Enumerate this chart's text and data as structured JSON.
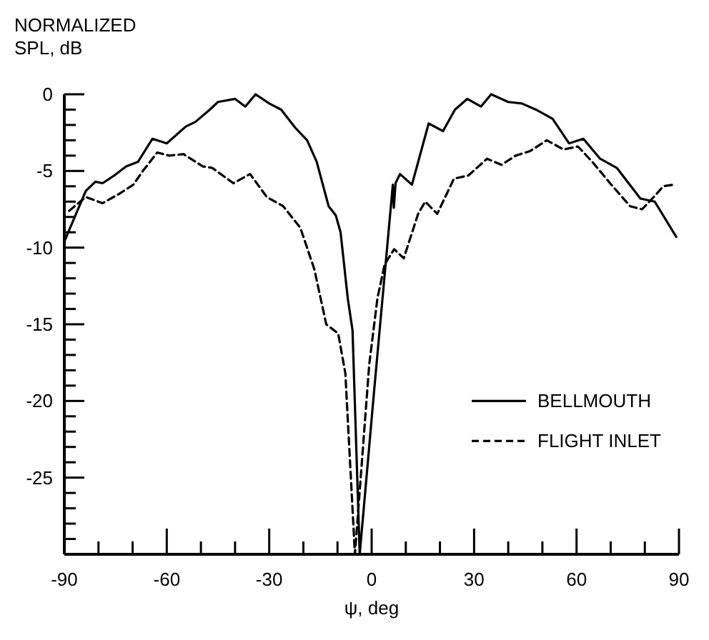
{
  "chart_data": {
    "type": "line",
    "ylabel": "NORMALIZED SPL, dB",
    "xlabel": "ψ, deg",
    "xlim": [
      -90,
      90
    ],
    "ylim": [
      -30,
      0
    ],
    "xticks": [
      -90,
      {
        "value": -80,
        "label": null
      },
      {
        "value": -70,
        "label": null
      },
      -60,
      {
        "value": -50,
        "label": null
      },
      {
        "value": -40,
        "label": null
      },
      -30,
      {
        "value": -20,
        "label": null
      },
      {
        "value": -10,
        "label": null
      },
      0,
      {
        "value": 10,
        "label": null
      },
      {
        "value": 20,
        "label": null
      },
      30,
      {
        "value": 40,
        "label": null
      },
      {
        "value": 50,
        "label": null
      },
      60,
      {
        "value": 70,
        "label": null
      },
      {
        "value": 80,
        "label": null
      },
      90
    ],
    "yticks": [
      {
        "value": -30,
        "label": null
      },
      {
        "value": -29,
        "label": null
      },
      {
        "value": -28,
        "label": null
      },
      {
        "value": -27,
        "label": null
      },
      {
        "value": -26,
        "label": null
      },
      -25,
      {
        "value": -24,
        "label": null
      },
      {
        "value": -23,
        "label": null
      },
      {
        "value": -22,
        "label": null
      },
      {
        "value": -21,
        "label": null
      },
      -20,
      {
        "value": -19,
        "label": null
      },
      {
        "value": -18,
        "label": null
      },
      {
        "value": -17,
        "label": null
      },
      {
        "value": -16,
        "label": null
      },
      -15,
      {
        "value": -14,
        "label": null
      },
      {
        "value": -13,
        "label": null
      },
      {
        "value": -12,
        "label": null
      },
      {
        "value": -11,
        "label": null
      },
      -10,
      {
        "value": -9,
        "label": null
      },
      {
        "value": -8,
        "label": null
      },
      {
        "value": -7,
        "label": null
      },
      {
        "value": -6,
        "label": null
      },
      -5,
      {
        "value": -4,
        "label": null
      },
      {
        "value": -3,
        "label": null
      },
      {
        "value": -2,
        "label": null
      },
      {
        "value": -1,
        "label": null
      },
      0
    ],
    "grid": false,
    "legend": "right",
    "marker": "none",
    "series": [
      {
        "name": "BELLMOUTH",
        "color": "#000000",
        "line_style": "solid",
        "x": [
          -90,
          -83.7,
          -80.9,
          -78.8,
          -75.4,
          -71.9,
          -68.4,
          -64.2,
          -60,
          -54.4,
          -51.6,
          -47.4,
          -45,
          -40,
          -37,
          -34,
          -30,
          -26.5,
          -22.3,
          -18.9,
          -16.1,
          -12.6,
          -10.5,
          -9.1,
          -7,
          -5.6,
          -3.5,
          0.7,
          6.2,
          6.5,
          7,
          8.3,
          11.8,
          16.7,
          20.9,
          24.4,
          28,
          32,
          35,
          40,
          44,
          48.1,
          53,
          57.8,
          62,
          66.9,
          71.8,
          78.7,
          82.9,
          89.2
        ],
        "values": [
          -9.6,
          -6.3,
          -5.7,
          -5.8,
          -5.3,
          -4.7,
          -4.4,
          -2.9,
          -3.2,
          -2.1,
          -1.8,
          -1.0,
          -0.5,
          -0.3,
          -0.8,
          0,
          -0.6,
          -1.0,
          -2.2,
          -3.0,
          -4.4,
          -7.3,
          -7.9,
          -9.0,
          -13.3,
          -15.4,
          -30,
          -19.4,
          -5.9,
          -7.4,
          -5.8,
          -5.2,
          -5.9,
          -1.9,
          -2.4,
          -1.0,
          -0.3,
          -0.8,
          0,
          -0.5,
          -0.6,
          -1.0,
          -1.6,
          -3.2,
          -2.9,
          -4.2,
          -4.8,
          -6.8,
          -7.0,
          -9.3
        ]
      },
      {
        "name": "FLIGHT INLET",
        "color": "#000000",
        "line_style": "dashed",
        "x": [
          -88.6,
          -83.7,
          -78.8,
          -74,
          -69.8,
          -67,
          -62.8,
          -59.3,
          -55.1,
          -49.5,
          -46.7,
          -40.5,
          -35.6,
          -30.7,
          -25.9,
          -20.9,
          -16.8,
          -13.3,
          -9.8,
          -7.7,
          -4.9,
          -0.7,
          1.7,
          3.8,
          6.6,
          9.4,
          13.6,
          15.7,
          19.2,
          24.1,
          28.3,
          33.8,
          38,
          42.2,
          46.4,
          51.3,
          56.2,
          60.4,
          64.6,
          70.2,
          75.7,
          79.2,
          82.6,
          85.4,
          88.2
        ],
        "values": [
          -7.6,
          -6.7,
          -7.1,
          -6.5,
          -5.9,
          -5.0,
          -3.8,
          -4.0,
          -3.9,
          -4.7,
          -4.8,
          -5.8,
          -5.2,
          -6.7,
          -7.3,
          -8.7,
          -11.4,
          -15.0,
          -15.6,
          -18.2,
          -30,
          -17.6,
          -13.3,
          -11.1,
          -10.1,
          -10.7,
          -7.8,
          -7.0,
          -7.8,
          -5.5,
          -5.3,
          -4.2,
          -4.6,
          -4.0,
          -3.7,
          -3.0,
          -3.6,
          -3.4,
          -4.4,
          -5.9,
          -7.3,
          -7.5,
          -6.7,
          -6.0,
          -5.9
        ]
      }
    ]
  }
}
